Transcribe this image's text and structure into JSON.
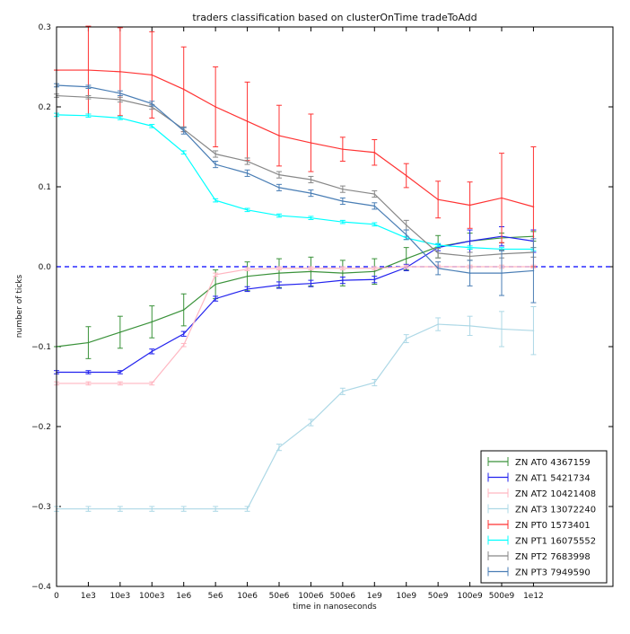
{
  "chart_data": {
    "type": "line",
    "title": "traders classification based on clusterOnTime tradeToAdd",
    "xlabel": "time in nanoseconds",
    "ylabel": "number of ticks",
    "categories": [
      "0",
      "1e3",
      "10e3",
      "100e3",
      "1e6",
      "5e6",
      "10e6",
      "50e6",
      "100e6",
      "500e6",
      "1e9",
      "10e9",
      "50e9",
      "100e9",
      "500e9",
      "1e12"
    ],
    "ylim": [
      -0.4,
      0.3
    ],
    "yticks": [
      "0.3",
      "0.2",
      "0.1",
      "0.0",
      "−0.1",
      "−0.2",
      "−0.3",
      "−0.4"
    ],
    "ytick_values": [
      0.3,
      0.2,
      0.1,
      0.0,
      -0.1,
      -0.2,
      -0.3,
      -0.4
    ],
    "reference_line": {
      "y": 0.0,
      "style": "dashed",
      "color": "#0000ff"
    },
    "grid": false,
    "legend_position": "lower-right",
    "series": [
      {
        "name": "ZN AT0 4367159",
        "color": "#3a923a",
        "values": [
          -0.1,
          -0.095,
          -0.082,
          -0.069,
          -0.054,
          -0.022,
          -0.012,
          -0.008,
          -0.006,
          -0.008,
          -0.006,
          0.01,
          0.025,
          0.032,
          0.036,
          0.038
        ],
        "errors": [
          0.0,
          0.02,
          0.02,
          0.02,
          0.02,
          0.018,
          0.018,
          0.018,
          0.018,
          0.016,
          0.016,
          0.014,
          0.014,
          0.01,
          0.006,
          0.006
        ]
      },
      {
        "name": "ZN AT1 5421734",
        "color": "#2222ee",
        "values": [
          -0.132,
          -0.132,
          -0.132,
          -0.106,
          -0.084,
          -0.04,
          -0.028,
          -0.023,
          -0.021,
          -0.017,
          -0.016,
          -0.001,
          0.024,
          0.032,
          0.038,
          0.032
        ],
        "errors": [
          0.002,
          0.002,
          0.002,
          0.003,
          0.003,
          0.003,
          0.003,
          0.004,
          0.004,
          0.004,
          0.004,
          0.004,
          0.004,
          0.014,
          0.012,
          0.014
        ]
      },
      {
        "name": "ZN AT2 10421408",
        "color": "#ffb6c1",
        "values": [
          -0.146,
          -0.146,
          -0.146,
          -0.146,
          -0.098,
          -0.01,
          -0.003,
          -0.002,
          -0.002,
          -0.002,
          -0.002,
          0.0,
          0.0,
          0.0,
          0.0,
          0.0
        ],
        "errors": [
          0.002,
          0.002,
          0.002,
          0.002,
          0.002,
          0.002,
          0.002,
          0.002,
          0.002,
          0.002,
          0.002,
          0.002,
          0.002,
          0.002,
          0.002,
          0.002
        ]
      },
      {
        "name": "ZN AT3 13072240",
        "color": "#add8e6",
        "values": [
          -0.303,
          -0.303,
          -0.303,
          -0.303,
          -0.303,
          -0.303,
          -0.303,
          -0.226,
          -0.195,
          -0.156,
          -0.145,
          -0.09,
          -0.072,
          -0.074,
          -0.078,
          -0.08
        ],
        "errors": [
          0.003,
          0.003,
          0.003,
          0.003,
          0.003,
          0.003,
          0.003,
          0.004,
          0.004,
          0.004,
          0.004,
          0.005,
          0.008,
          0.012,
          0.022,
          0.03
        ]
      },
      {
        "name": "ZN PT0 1573401",
        "color": "#ff3333",
        "values": [
          0.246,
          0.246,
          0.244,
          0.24,
          0.222,
          0.2,
          0.182,
          0.164,
          0.155,
          0.147,
          0.143,
          0.114,
          0.084,
          0.077,
          0.086,
          0.075
        ],
        "errors": [
          0.0,
          0.055,
          0.055,
          0.054,
          0.053,
          0.05,
          0.049,
          0.038,
          0.036,
          0.015,
          0.016,
          0.015,
          0.023,
          0.029,
          0.056,
          0.075
        ]
      },
      {
        "name": "ZN PT1 16075552",
        "color": "#00ffff",
        "values": [
          0.19,
          0.189,
          0.186,
          0.176,
          0.143,
          0.083,
          0.071,
          0.064,
          0.061,
          0.056,
          0.053,
          0.036,
          0.027,
          0.024,
          0.022,
          0.022
        ],
        "errors": [
          0.002,
          0.002,
          0.002,
          0.002,
          0.002,
          0.002,
          0.002,
          0.002,
          0.002,
          0.002,
          0.002,
          0.002,
          0.002,
          0.002,
          0.002,
          0.002
        ]
      },
      {
        "name": "ZN PT2 7683998",
        "color": "#888888",
        "values": [
          0.214,
          0.212,
          0.209,
          0.2,
          0.172,
          0.141,
          0.132,
          0.115,
          0.109,
          0.097,
          0.091,
          0.052,
          0.017,
          0.013,
          0.016,
          0.018
        ],
        "errors": [
          0.002,
          0.002,
          0.003,
          0.003,
          0.003,
          0.004,
          0.004,
          0.004,
          0.004,
          0.004,
          0.004,
          0.006,
          0.006,
          0.005,
          0.005,
          0.006
        ]
      },
      {
        "name": "ZN PT3 7949590",
        "color": "#4a7eb5",
        "values": [
          0.227,
          0.225,
          0.217,
          0.204,
          0.17,
          0.128,
          0.117,
          0.099,
          0.092,
          0.082,
          0.076,
          0.04,
          -0.002,
          -0.008,
          -0.008,
          -0.005
        ],
        "errors": [
          0.002,
          0.002,
          0.003,
          0.003,
          0.004,
          0.004,
          0.004,
          0.004,
          0.004,
          0.004,
          0.004,
          0.006,
          0.008,
          0.016,
          0.028,
          0.04
        ]
      }
    ]
  }
}
